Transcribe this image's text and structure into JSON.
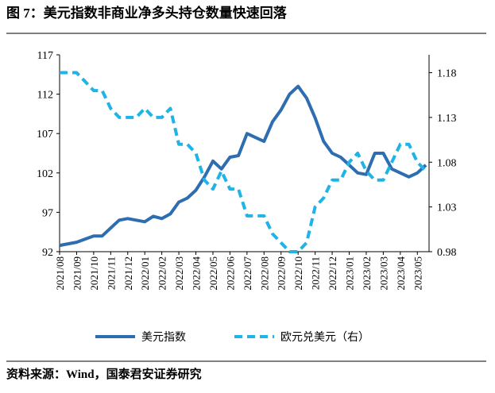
{
  "chart_data": {
    "type": "line",
    "title": "图 7：美元指数非商业净多头持仓数量快速回落",
    "source": "资料来源：Wind，国泰君安证券研究",
    "categories": [
      "2021/08",
      null,
      "2021/09",
      null,
      "2021/10",
      null,
      "2021/11",
      null,
      "2021/12",
      null,
      "2022/01",
      null,
      "2022/02",
      null,
      "2022/03",
      null,
      "2022/04",
      null,
      "2022/05",
      null,
      "2022/06",
      null,
      "2022/07",
      null,
      "2022/08",
      null,
      "2022/09",
      null,
      "2022/10",
      null,
      "2022/11",
      null,
      "2022/12",
      null,
      "2023/01",
      null,
      "2023/02",
      null,
      "2023/03",
      null,
      "2023/04",
      null,
      "2023/05",
      null
    ],
    "series": [
      {
        "name": "美元指数",
        "color": "#2e6db0",
        "dash": false,
        "axis": "y",
        "values": [
          92.8,
          93.0,
          93.2,
          93.6,
          94.0,
          94.0,
          95.0,
          96.0,
          96.2,
          96.0,
          95.8,
          96.5,
          96.2,
          96.8,
          98.3,
          98.8,
          99.8,
          101.5,
          103.5,
          102.5,
          104.0,
          104.2,
          107.0,
          106.5,
          106.0,
          108.5,
          110.0,
          112.0,
          113.0,
          111.5,
          109.0,
          106.0,
          104.5,
          104.0,
          103.0,
          102.0,
          101.8,
          104.5,
          104.5,
          102.5,
          102.0,
          101.5,
          102.0,
          103.0
        ]
      },
      {
        "name": "欧元兑美元（右）",
        "color": "#1fb3e6",
        "dash": true,
        "axis": "y2",
        "values": [
          1.18,
          1.18,
          1.18,
          1.17,
          1.16,
          1.16,
          1.14,
          1.13,
          1.13,
          1.13,
          1.14,
          1.13,
          1.13,
          1.14,
          1.1,
          1.1,
          1.09,
          1.06,
          1.05,
          1.07,
          1.05,
          1.05,
          1.02,
          1.02,
          1.02,
          1.0,
          0.99,
          0.98,
          0.98,
          0.99,
          1.03,
          1.04,
          1.06,
          1.06,
          1.08,
          1.09,
          1.07,
          1.06,
          1.06,
          1.08,
          1.1,
          1.1,
          1.08,
          1.07
        ]
      }
    ],
    "ylim": [
      92,
      117
    ],
    "yticks": [
      92,
      97,
      102,
      107,
      112,
      117
    ],
    "y2lim": [
      0.98,
      1.2
    ],
    "y2ticks": [
      0.98,
      1.03,
      1.08,
      1.13,
      1.18
    ],
    "legend": "bottom"
  }
}
